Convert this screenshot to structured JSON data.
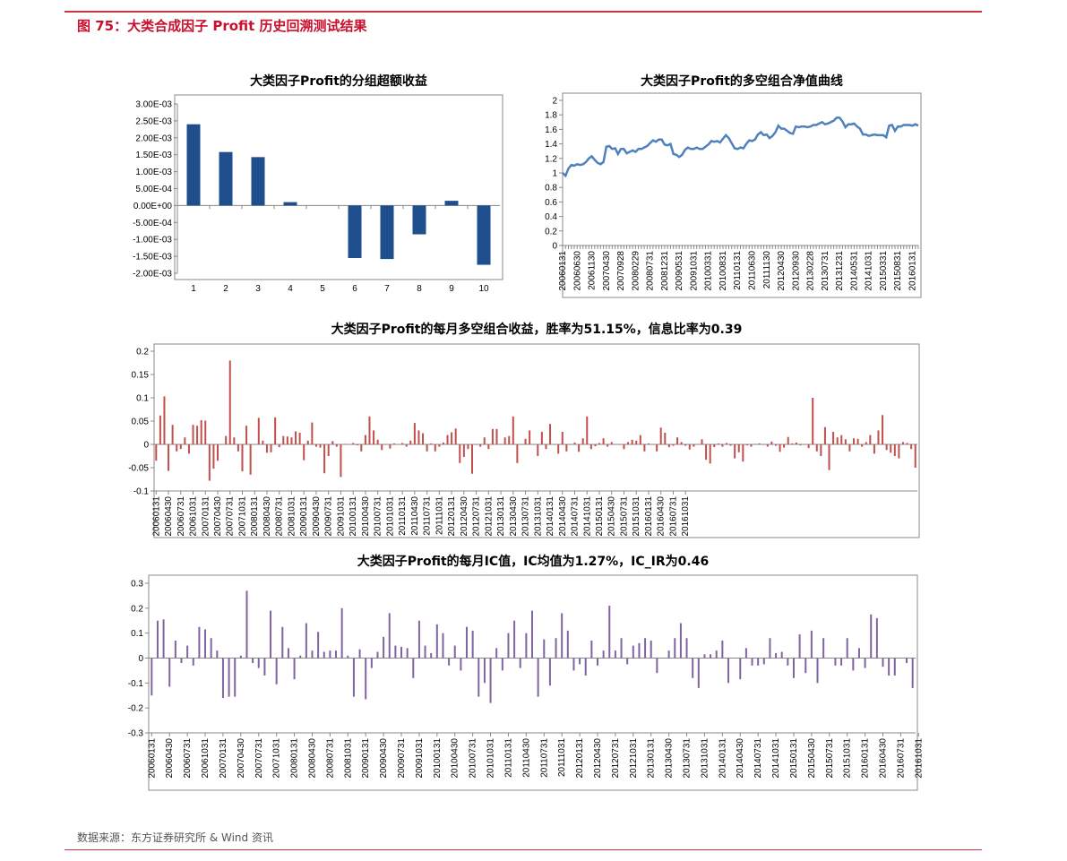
{
  "header": {
    "title": "图 75：大类合成因子 Profit 历史回溯测试结果"
  },
  "footer": {
    "source": "数据来源：东方证券研究所 & Wind 资讯"
  },
  "colors": {
    "accent": "#c8102e",
    "bar_blue": "#1f4e8c",
    "line_blue": "#4f81bd",
    "bar_red": "#c0504d",
    "bar_purple": "#8064a2"
  },
  "chart_data": [
    {
      "id": "group-excess",
      "type": "bar",
      "title": "大类因子Profit的分组超额收益",
      "categories": [
        "1",
        "2",
        "3",
        "4",
        "5",
        "6",
        "7",
        "8",
        "9",
        "10"
      ],
      "values": [
        0.0024,
        0.00158,
        0.00143,
        0.0001,
        0.0,
        -0.00155,
        -0.00158,
        -0.00085,
        0.00014,
        -0.00175
      ],
      "ylim": [
        -0.002,
        0.003
      ],
      "yticks": [
        "3.00E-03",
        "2.50E-03",
        "2.00E-03",
        "1.50E-03",
        "1.00E-03",
        "5.00E-04",
        "0.00E+00",
        "-5.00E-04",
        "-1.00E-03",
        "-1.50E-03",
        "-2.00E-03"
      ],
      "xlabel": "",
      "ylabel": "",
      "grid": false,
      "legend": "none"
    },
    {
      "id": "long-short-nav",
      "type": "line",
      "title": "大类因子Profit的多空组合净值曲线",
      "start": "20060131",
      "frequency": "monthly",
      "values": [
        1.0,
        0.96,
        1.06,
        1.11,
        1.1,
        1.12,
        1.11,
        1.12,
        1.15,
        1.2,
        1.23,
        1.18,
        1.14,
        1.12,
        1.15,
        1.36,
        1.37,
        1.33,
        1.34,
        1.26,
        1.33,
        1.33,
        1.27,
        1.29,
        1.31,
        1.29,
        1.33,
        1.33,
        1.35,
        1.37,
        1.41,
        1.45,
        1.43,
        1.46,
        1.46,
        1.39,
        1.38,
        1.4,
        1.26,
        1.25,
        1.22,
        1.25,
        1.32,
        1.35,
        1.33,
        1.33,
        1.35,
        1.33,
        1.33,
        1.36,
        1.39,
        1.44,
        1.43,
        1.44,
        1.42,
        1.47,
        1.52,
        1.48,
        1.41,
        1.34,
        1.33,
        1.35,
        1.34,
        1.4,
        1.45,
        1.44,
        1.46,
        1.53,
        1.56,
        1.52,
        1.53,
        1.48,
        1.51,
        1.56,
        1.65,
        1.61,
        1.61,
        1.58,
        1.55,
        1.54,
        1.64,
        1.63,
        1.64,
        1.64,
        1.63,
        1.64,
        1.66,
        1.66,
        1.68,
        1.7,
        1.67,
        1.68,
        1.7,
        1.72,
        1.76,
        1.76,
        1.71,
        1.63,
        1.67,
        1.67,
        1.68,
        1.64,
        1.61,
        1.53,
        1.53,
        1.51,
        1.52,
        1.53,
        1.52,
        1.52,
        1.52,
        1.49,
        1.65,
        1.66,
        1.58,
        1.64,
        1.64,
        1.66,
        1.66,
        1.66,
        1.65,
        1.67,
        1.65
      ],
      "ylim": [
        0,
        2
      ],
      "yticks": [
        "2",
        "1.8",
        "1.6",
        "1.4",
        "1.2",
        "1",
        "0.8",
        "0.6",
        "0.4",
        "0.2",
        "0"
      ],
      "xticks": [
        "20060131",
        "20060630",
        "20061130",
        "20070430",
        "20070928",
        "20080229",
        "20080731",
        "20081231",
        "20090531",
        "20091031",
        "20100331",
        "20100831",
        "20110131",
        "20110630",
        "20111130",
        "20120430",
        "20120930",
        "20130228",
        "20130731",
        "20131231",
        "20140531",
        "20141031",
        "20150331",
        "20150831",
        "20160131"
      ],
      "grid": false,
      "legend": "none"
    },
    {
      "id": "monthly-ls-return",
      "type": "bar",
      "title": "大类因子Profit的每月多空组合收益，胜率为51.15%，信息比率为0.39",
      "start": "20060131",
      "frequency": "monthly",
      "values": [
        -0.035,
        0.062,
        0.103,
        -0.057,
        0.042,
        -0.015,
        -0.01,
        0.015,
        -0.02,
        0.042,
        0.04,
        0.052,
        0.051,
        -0.078,
        -0.052,
        -0.035,
        0.0,
        0.018,
        0.18,
        0.015,
        -0.015,
        -0.058,
        0.04,
        -0.065,
        0.0,
        0.057,
        0.008,
        -0.018,
        -0.017,
        0.058,
        -0.006,
        0.018,
        0.017,
        0.015,
        0.028,
        0.025,
        -0.034,
        0.008,
        0.047,
        -0.005,
        -0.007,
        -0.062,
        -0.025,
        0.007,
        -0.005,
        -0.07,
        0.001,
        0.0,
        0.003,
        -0.002,
        -0.015,
        0.02,
        0.06,
        0.03,
        0.01,
        -0.012,
        0.0,
        -0.009,
        0.002,
        0.0,
        0.003,
        -0.005,
        0.008,
        0.046,
        0.03,
        0.024,
        -0.015,
        0.002,
        -0.015,
        -0.005,
        0.004,
        0.02,
        0.026,
        0.034,
        -0.04,
        -0.027,
        -0.01,
        -0.063,
        0.0,
        -0.005,
        0.015,
        -0.01,
        0.033,
        0.033,
        0.001,
        0.015,
        0.018,
        0.06,
        -0.04,
        0.0,
        0.012,
        0.03,
        0.0,
        -0.025,
        0.027,
        -0.01,
        0.044,
        0.0,
        -0.02,
        0.027,
        -0.015,
        0.0,
        0.004,
        -0.016,
        0.013,
        0.06,
        -0.01,
        -0.004,
        0.003,
        0.013,
        -0.005,
        0.005,
        0.0,
        0.0,
        -0.01,
        0.005,
        0.01,
        0.008,
        0.02,
        -0.015,
        0.002,
        0.0,
        -0.015,
        0.036,
        0.025,
        -0.006,
        -0.003,
        0.015,
        0.005,
        -0.003,
        -0.011,
        -0.005,
        0.0,
        0.011,
        -0.033,
        -0.041,
        -0.006,
        0.002,
        -0.005,
        0.003,
        -0.003,
        -0.03,
        -0.017,
        -0.037,
        -0.002,
        -0.005,
        0.001,
        0.002,
        -0.001,
        -0.005,
        0.006,
        -0.003,
        -0.016,
        -0.007,
        0.016,
        0.002,
        0.004,
        -0.002,
        0.0,
        -0.008,
        0.1,
        -0.015,
        -0.025,
        0.037,
        -0.055,
        0.027,
        0.015,
        0.02,
        0.011,
        -0.015,
        0.013,
        0.012,
        -0.005,
        0.005,
        0.02,
        -0.02,
        0.03,
        0.063,
        -0.012,
        -0.018,
        -0.025,
        -0.03,
        0.005,
        0.003,
        -0.01,
        -0.05
      ],
      "ylim": [
        -0.1,
        0.2
      ],
      "yticks": [
        "0.2",
        "0.15",
        "0.1",
        "0.05",
        "0",
        "-0.05",
        "-0.1"
      ],
      "xticks": [
        "20060131",
        "20060430",
        "20060731",
        "20061031",
        "20070131",
        "20070430",
        "20070731",
        "20071031",
        "20080131",
        "20080430",
        "20080731",
        "20081031",
        "20090131",
        "20090430",
        "20090731",
        "20091031",
        "20100131",
        "20100430",
        "20100731",
        "20101031",
        "20110131",
        "20110430",
        "20110731",
        "20111031",
        "20120131",
        "20120430",
        "20120731",
        "20121031",
        "20130131",
        "20130430",
        "20130731",
        "20131031",
        "20140131",
        "20140430",
        "20140731",
        "20141031",
        "20150131",
        "20150430",
        "20150731",
        "20151031",
        "20160131",
        "20160430",
        "20160731",
        "20161031"
      ],
      "grid": false,
      "legend": "none"
    },
    {
      "id": "monthly-ic",
      "type": "bar",
      "title": "大类因子Profit的每月IC值，IC均值为1.27%，IC_IR为0.46",
      "start": "20060131",
      "frequency": "monthly",
      "values": [
        -0.15,
        0.15,
        0.155,
        -0.115,
        0.07,
        -0.02,
        0.05,
        -0.03,
        0.125,
        0.115,
        0.08,
        0.03,
        -0.16,
        -0.155,
        -0.155,
        0.01,
        0.27,
        -0.02,
        -0.04,
        -0.07,
        0.19,
        -0.105,
        0.125,
        0.04,
        -0.085,
        0.01,
        0.14,
        0.03,
        0.105,
        0.025,
        0.03,
        0.03,
        0.2,
        0.01,
        -0.155,
        0.035,
        -0.165,
        -0.04,
        0.025,
        0.085,
        0.18,
        0.05,
        0.045,
        0.04,
        -0.08,
        0.15,
        0.05,
        0.02,
        0.135,
        0.1,
        -0.03,
        0.05,
        -0.05,
        0.125,
        0.11,
        -0.155,
        -0.1,
        -0.18,
        0.04,
        -0.05,
        0.1,
        0.15,
        -0.04,
        0.1,
        0.19,
        -0.155,
        0.075,
        -0.11,
        0.08,
        0.18,
        0.11,
        -0.05,
        -0.025,
        -0.07,
        0.07,
        -0.03,
        0.03,
        0.21,
        0.03,
        0.08,
        -0.025,
        0.05,
        0.06,
        0.08,
        0.07,
        -0.06,
        0.0,
        0.03,
        0.08,
        0.14,
        0.08,
        -0.08,
        -0.12,
        0.015,
        0.015,
        0.03,
        0.07,
        -0.1,
        0.0,
        -0.085,
        0.04,
        -0.03,
        -0.03,
        -0.025,
        0.08,
        0.02,
        0.025,
        -0.03,
        -0.08,
        0.095,
        -0.06,
        0.11,
        -0.1,
        0.08,
        0.0,
        -0.03,
        -0.03,
        0.08,
        -0.05,
        0.04,
        -0.04,
        0.175,
        0.16,
        -0.035,
        -0.07,
        -0.07,
        0.0,
        -0.02,
        -0.12
      ],
      "ylim": [
        -0.3,
        0.3
      ],
      "yticks": [
        "0.3",
        "0.2",
        "0.1",
        "0",
        "-0.1",
        "-0.2",
        "-0.3"
      ],
      "xticks": [
        "20060131",
        "20060430",
        "20060731",
        "20061031",
        "20070131",
        "20070430",
        "20070731",
        "20071031",
        "20080131",
        "20080430",
        "20080731",
        "20081031",
        "20090131",
        "20090430",
        "20090731",
        "20091031",
        "20100131",
        "20100430",
        "20100731",
        "20101031",
        "20110131",
        "20110430",
        "20110731",
        "20111031",
        "20120131",
        "20120430",
        "20120731",
        "20121031",
        "20130131",
        "20130430",
        "20130731",
        "20131031",
        "20140131",
        "20140430",
        "20140731",
        "20141031",
        "20150131",
        "20150430",
        "20150731",
        "20151031",
        "20160131",
        "20160430",
        "20160731",
        "20161031"
      ],
      "grid": false,
      "legend": "none"
    }
  ]
}
